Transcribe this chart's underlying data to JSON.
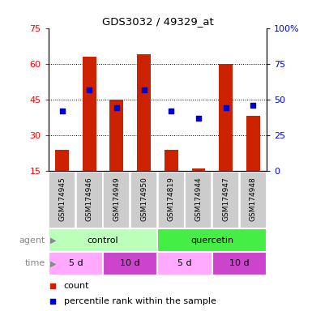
{
  "title": "GDS3032 / 49329_at",
  "samples": [
    "GSM174945",
    "GSM174946",
    "GSM174949",
    "GSM174950",
    "GSM174819",
    "GSM174944",
    "GSM174947",
    "GSM174948"
  ],
  "counts": [
    24,
    63,
    45,
    64,
    24,
    16,
    60,
    38
  ],
  "percentiles": [
    42,
    57,
    44,
    57,
    42,
    37,
    44,
    46
  ],
  "ylim_left": [
    15,
    75
  ],
  "ylim_right": [
    0,
    100
  ],
  "yticks_left": [
    15,
    30,
    45,
    60,
    75
  ],
  "yticks_right": [
    0,
    25,
    50,
    75,
    100
  ],
  "ytick_labels_right": [
    "0",
    "25",
    "50",
    "75",
    "100%"
  ],
  "bar_color": "#cc2200",
  "dot_color": "#0000cc",
  "agent_colors": [
    "#bbffbb",
    "#44ee44"
  ],
  "time_colors": [
    "#ffaaff",
    "#cc44cc",
    "#ffaaff",
    "#cc44cc"
  ],
  "sample_bg": "#cccccc",
  "bg_color": "#ffffff"
}
